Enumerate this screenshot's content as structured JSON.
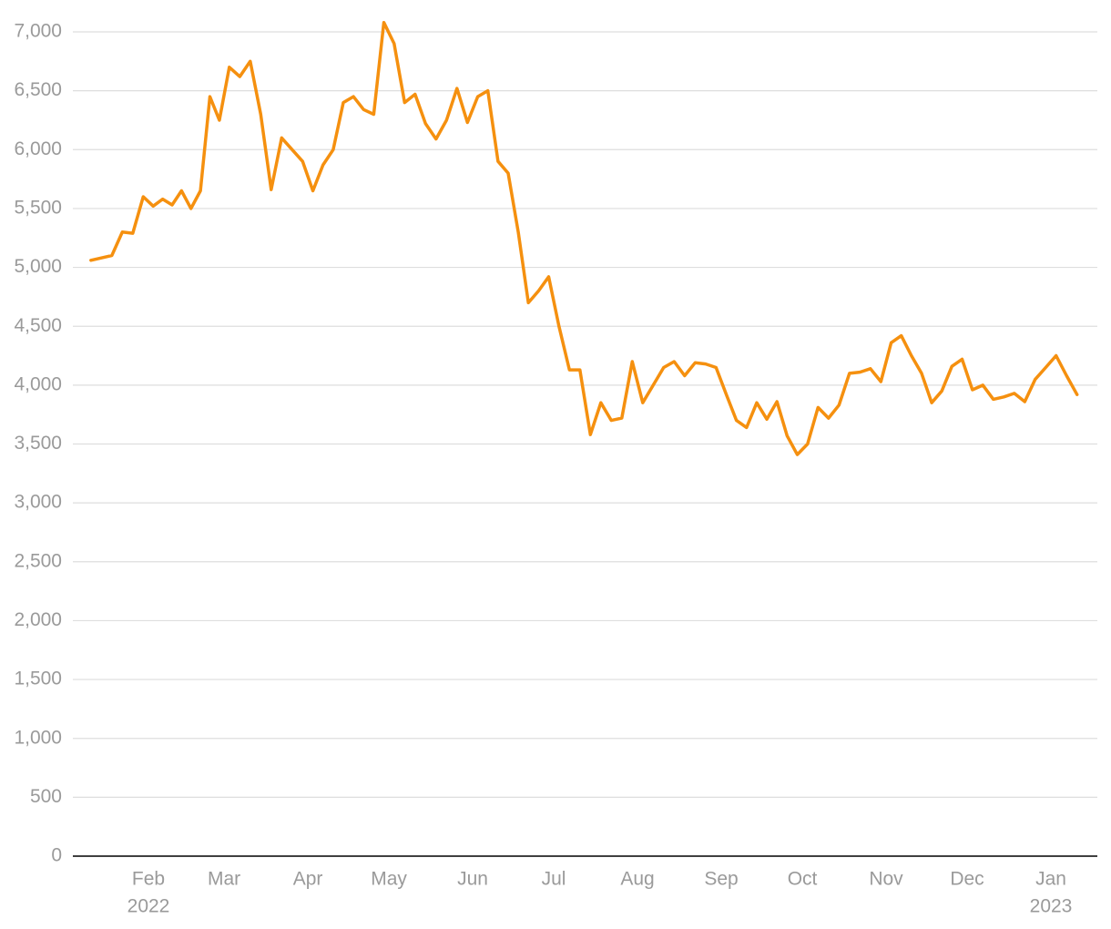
{
  "chart_data": {
    "type": "line",
    "color": "#f5900f",
    "x": [
      "2022-01",
      "2022-01",
      "2022-01",
      "2022-01",
      "2022-01",
      "2022-01",
      "2022-02",
      "2022-02",
      "2022-02",
      "2022-02",
      "2022-02",
      "2022-02",
      "2022-02",
      "2022-02",
      "2022-03",
      "2022-03",
      "2022-03",
      "2022-03",
      "2022-03",
      "2022-03",
      "2022-03",
      "2022-03",
      "2022-04",
      "2022-04",
      "2022-04",
      "2022-04",
      "2022-04",
      "2022-04",
      "2022-04",
      "2022-04",
      "2022-05",
      "2022-05",
      "2022-05",
      "2022-05",
      "2022-05",
      "2022-05",
      "2022-05",
      "2022-05",
      "2022-06",
      "2022-06",
      "2022-06",
      "2022-06",
      "2022-06",
      "2022-06",
      "2022-06",
      "2022-06",
      "2022-07",
      "2022-07",
      "2022-07",
      "2022-07",
      "2022-07",
      "2022-07",
      "2022-07",
      "2022-07",
      "2022-08",
      "2022-08",
      "2022-08",
      "2022-08",
      "2022-08",
      "2022-08",
      "2022-08",
      "2022-08",
      "2022-09",
      "2022-09",
      "2022-09",
      "2022-09",
      "2022-09",
      "2022-09",
      "2022-09",
      "2022-09",
      "2022-10",
      "2022-10",
      "2022-10",
      "2022-10",
      "2022-10",
      "2022-10",
      "2022-10",
      "2022-10",
      "2022-11",
      "2022-11",
      "2022-11",
      "2022-11",
      "2022-11",
      "2022-11",
      "2022-11",
      "2022-11",
      "2022-12",
      "2022-12",
      "2022-12",
      "2022-12",
      "2022-12",
      "2022-12",
      "2022-12",
      "2022-12",
      "2023-01",
      "2023-01",
      "2023-01"
    ],
    "values": [
      5060,
      5080,
      5100,
      5300,
      5290,
      5600,
      5520,
      5580,
      5530,
      5650,
      5500,
      5650,
      6450,
      6250,
      6700,
      6620,
      6750,
      6300,
      5660,
      6100,
      6000,
      5900,
      5650,
      5870,
      6000,
      6400,
      6450,
      6340,
      6300,
      7080,
      6900,
      6400,
      6470,
      6220,
      6090,
      6250,
      6520,
      6230,
      6450,
      6500,
      5900,
      5800,
      5300,
      4700,
      4800,
      4920,
      4500,
      4130,
      4130,
      3580,
      3850,
      3700,
      3720,
      4200,
      3850,
      4000,
      4150,
      4200,
      4080,
      4190,
      4180,
      4150,
      3920,
      3700,
      3640,
      3850,
      3710,
      3860,
      3570,
      3410,
      3500,
      3810,
      3720,
      3830,
      4100,
      4110,
      4140,
      4030,
      4360,
      4420,
      4250,
      4100,
      3850,
      3950,
      4160,
      4220,
      3960,
      4000,
      3880,
      3900,
      3930,
      3860,
      4050,
      4150,
      4250,
      4080,
      3920
    ],
    "xticks": [
      {
        "value": "2022-02",
        "label": "Feb",
        "year": "2022"
      },
      {
        "value": "2022-03",
        "label": "Mar"
      },
      {
        "value": "2022-04",
        "label": "Apr"
      },
      {
        "value": "2022-05",
        "label": "May"
      },
      {
        "value": "2022-06",
        "label": "Jun"
      },
      {
        "value": "2022-07",
        "label": "Jul"
      },
      {
        "value": "2022-08",
        "label": "Aug"
      },
      {
        "value": "2022-09",
        "label": "Sep"
      },
      {
        "value": "2022-10",
        "label": "Oct"
      },
      {
        "value": "2022-11",
        "label": "Nov"
      },
      {
        "value": "2022-12",
        "label": "Dec"
      },
      {
        "value": "2023-01",
        "label": "Jan",
        "year": "2023"
      }
    ],
    "ylim": [
      0,
      7000
    ],
    "yticks": [
      0,
      500,
      {
        "value": 1000,
        "label": "1,000"
      },
      {
        "value": 1500,
        "label": "1,500"
      },
      {
        "value": 2000,
        "label": "2,000"
      },
      {
        "value": 2500,
        "label": "2,500"
      },
      {
        "value": 3000,
        "label": "3,000"
      },
      {
        "value": 3500,
        "label": "3,500"
      },
      {
        "value": 4000,
        "label": "4,000"
      },
      {
        "value": 4500,
        "label": "4,500"
      },
      {
        "value": 5000,
        "label": "5,000"
      },
      {
        "value": 5500,
        "label": "5,500"
      },
      {
        "value": 6000,
        "label": "6,000"
      },
      {
        "value": 6500,
        "label": "6,500"
      },
      {
        "value": 7000,
        "label": "7,000"
      }
    ],
    "grid": true
  }
}
